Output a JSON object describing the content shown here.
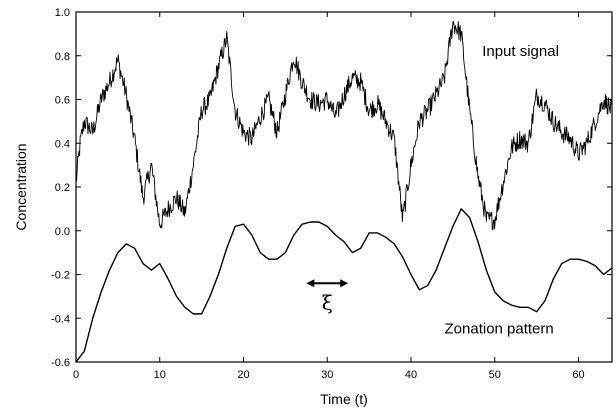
{
  "chart_data": {
    "type": "line",
    "xlabel": "Time (t)",
    "ylabel": "Concentration",
    "xlim": [
      0,
      64
    ],
    "ylim": [
      -0.6,
      1.0
    ],
    "x_ticks": [
      0,
      10,
      20,
      30,
      40,
      50,
      60
    ],
    "y_ticks": [
      -0.6,
      -0.4,
      -0.2,
      0.0,
      0.2,
      0.4,
      0.6,
      0.8,
      1.0
    ],
    "x_tick_labels": [
      "0",
      "10",
      "20",
      "30",
      "40",
      "50",
      "60"
    ],
    "y_tick_labels": [
      "-0.6",
      "-0.4",
      "-0.2",
      "0.0",
      "0.2",
      "0.4",
      "0.6",
      "0.8",
      "1.0"
    ],
    "grid": false,
    "series": [
      {
        "name": "Input signal",
        "x": [
          0,
          0.5,
          1,
          2,
          3,
          4,
          5,
          6,
          7,
          8,
          9,
          10,
          11,
          12,
          13,
          14,
          15,
          16,
          17,
          18,
          19,
          20,
          21,
          22,
          23,
          24,
          25,
          26,
          27,
          28,
          29,
          30,
          31,
          32,
          33,
          34,
          35,
          36,
          37,
          38,
          39,
          40,
          41,
          42,
          43,
          44,
          45,
          46,
          47,
          48,
          49,
          50,
          51,
          52,
          53,
          54,
          55,
          56,
          57,
          58,
          59,
          60,
          61,
          62,
          63,
          64
        ],
        "y": [
          0.22,
          0.4,
          0.5,
          0.45,
          0.6,
          0.68,
          0.78,
          0.62,
          0.42,
          0.15,
          0.3,
          0.03,
          0.1,
          0.15,
          0.08,
          0.3,
          0.55,
          0.6,
          0.75,
          0.88,
          0.55,
          0.45,
          0.42,
          0.52,
          0.6,
          0.45,
          0.62,
          0.8,
          0.68,
          0.6,
          0.58,
          0.6,
          0.52,
          0.62,
          0.7,
          0.68,
          0.55,
          0.58,
          0.5,
          0.42,
          0.05,
          0.3,
          0.5,
          0.55,
          0.62,
          0.7,
          0.95,
          0.9,
          0.55,
          0.25,
          0.05,
          0.05,
          0.22,
          0.38,
          0.42,
          0.4,
          0.62,
          0.58,
          0.5,
          0.45,
          0.42,
          0.35,
          0.4,
          0.5,
          0.6,
          0.55
        ]
      },
      {
        "name": "Zonation pattern",
        "x": [
          0,
          1,
          2,
          3,
          4,
          5,
          6,
          7,
          8,
          9,
          10,
          11,
          12,
          13,
          14,
          15,
          16,
          17,
          18,
          19,
          20,
          21,
          22,
          23,
          24,
          25,
          26,
          27,
          28,
          29,
          30,
          31,
          32,
          33,
          34,
          35,
          36,
          37,
          38,
          39,
          40,
          41,
          42,
          43,
          44,
          45,
          46,
          47,
          48,
          49,
          50,
          51,
          52,
          53,
          54,
          55,
          56,
          57,
          58,
          59,
          60,
          61,
          62,
          63,
          64
        ],
        "y": [
          -0.6,
          -0.55,
          -0.4,
          -0.28,
          -0.18,
          -0.1,
          -0.06,
          -0.08,
          -0.15,
          -0.18,
          -0.15,
          -0.22,
          -0.3,
          -0.35,
          -0.38,
          -0.38,
          -0.3,
          -0.2,
          -0.08,
          0.02,
          0.03,
          -0.02,
          -0.1,
          -0.13,
          -0.13,
          -0.1,
          -0.02,
          0.03,
          0.04,
          0.04,
          0.02,
          -0.02,
          -0.05,
          -0.1,
          -0.08,
          -0.01,
          -0.01,
          -0.03,
          -0.06,
          -0.12,
          -0.2,
          -0.27,
          -0.25,
          -0.18,
          -0.08,
          0.02,
          0.1,
          0.06,
          -0.05,
          -0.18,
          -0.28,
          -0.32,
          -0.34,
          -0.35,
          -0.35,
          -0.37,
          -0.32,
          -0.22,
          -0.15,
          -0.13,
          -0.13,
          -0.14,
          -0.16,
          -0.2,
          -0.17
        ]
      }
    ],
    "annotations": [
      {
        "text": "Input signal",
        "x": 48.5,
        "y": 0.8
      },
      {
        "text": "Zonation pattern",
        "x": 44,
        "y": -0.47
      },
      {
        "text": "ξ",
        "x": 30,
        "y": -0.36,
        "arrow": {
          "from": 27.5,
          "to": 32.5,
          "y": -0.24
        }
      }
    ]
  }
}
